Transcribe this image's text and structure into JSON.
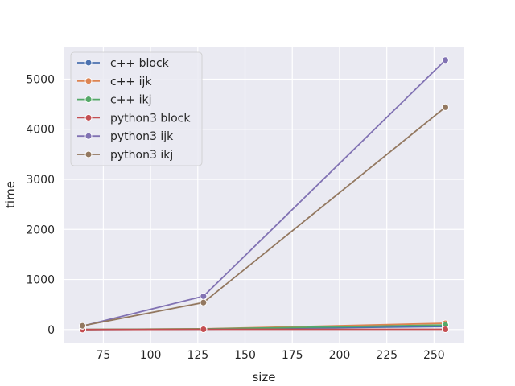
{
  "chart_data": {
    "type": "line",
    "title": "",
    "xlabel": "size",
    "ylabel": "time",
    "xlim": [
      54.4,
      265.6
    ],
    "ylim": [
      -260,
      5650
    ],
    "xticks": [
      75,
      100,
      125,
      150,
      175,
      200,
      225,
      250
    ],
    "yticks": [
      0,
      1000,
      2000,
      3000,
      4000,
      5000
    ],
    "grid": true,
    "legend_position": "top-left",
    "x": [
      64,
      128,
      256
    ],
    "series": [
      {
        "name": "c++ block",
        "color": "#4c72b0",
        "values": [
          0,
          8,
          60
        ]
      },
      {
        "name": "c++ ijk",
        "color": "#dd8452",
        "values": [
          1,
          14,
          125
        ]
      },
      {
        "name": "c++ ikj",
        "color": "#55a868",
        "values": [
          1,
          12,
          90
        ]
      },
      {
        "name": "python3 block",
        "color": "#c44e52",
        "values": [
          0,
          5,
          5
        ]
      },
      {
        "name": "python3 ijk",
        "color": "#8172b3",
        "values": [
          70,
          665,
          5380
        ]
      },
      {
        "name": "python3 ikj",
        "color": "#937860",
        "values": [
          75,
          540,
          4440
        ]
      }
    ]
  }
}
